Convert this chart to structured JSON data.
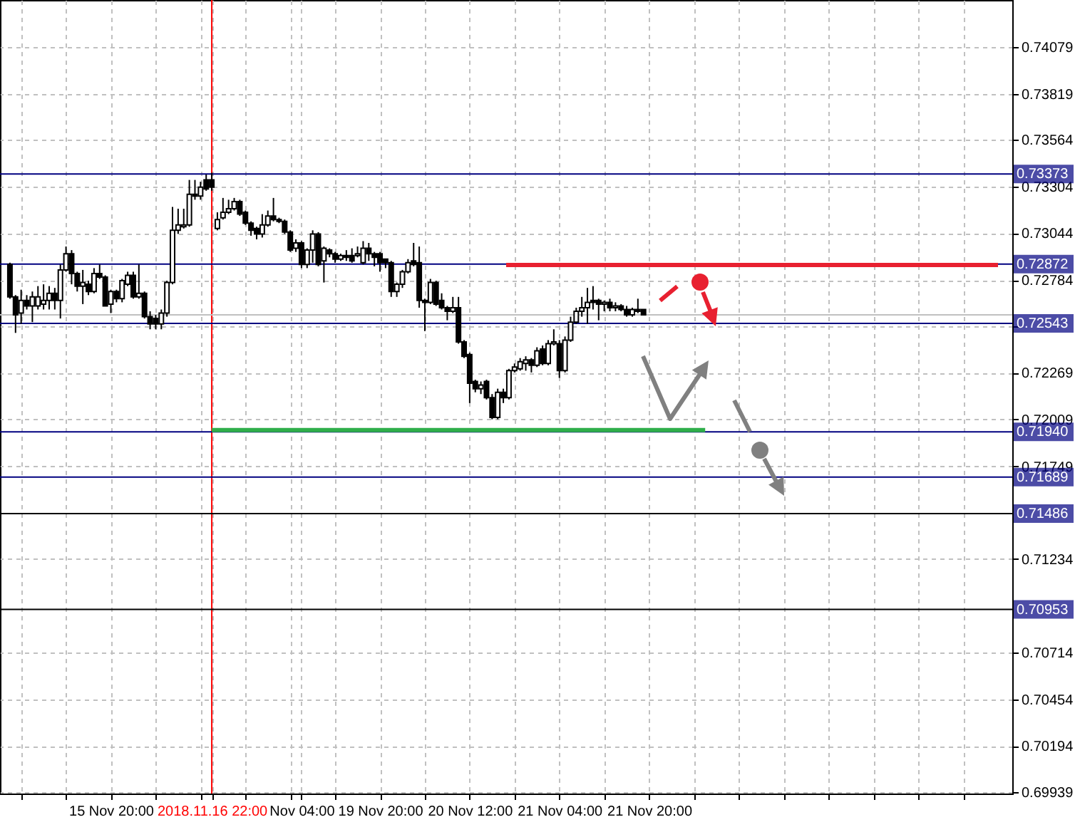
{
  "chart_data": {
    "type": "candlestick",
    "categories": [
      null,
      null,
      null,
      null,
      null,
      null,
      null,
      null,
      null,
      null,
      null,
      null,
      null,
      null,
      null,
      null,
      null,
      null,
      "15 Nov 20:00",
      null,
      null,
      null,
      null,
      null,
      null,
      null,
      null,
      null,
      null,
      null,
      null,
      null,
      null,
      null,
      null,
      null,
      "2018.11.16 22:00",
      null,
      null,
      null,
      null,
      null,
      null,
      null,
      null,
      null,
      null,
      null,
      null,
      null,
      null,
      null,
      "Nov 04:00",
      null,
      null,
      null,
      null,
      null,
      null,
      null,
      null,
      null,
      null,
      null,
      null,
      null,
      "19 Nov 20:00",
      null,
      null,
      null,
      null,
      null,
      null,
      null,
      null,
      null,
      null,
      null,
      null,
      null,
      null,
      null,
      "20 Nov 12:00",
      null,
      null,
      null,
      null,
      null,
      null,
      null,
      null,
      null,
      null,
      null,
      null,
      null,
      null,
      null,
      "21 Nov 04:00",
      null,
      null,
      null,
      null,
      null,
      null,
      null,
      null,
      null,
      null,
      null,
      null,
      null,
      null,
      null,
      "21 Nov 20:00",
      null,
      null,
      null,
      null,
      null,
      null,
      null,
      null,
      null,
      null,
      null,
      null,
      null,
      null,
      null,
      null,
      null,
      null,
      null,
      null,
      null,
      null,
      null,
      null,
      null,
      null,
      null,
      null,
      null,
      null,
      null,
      null,
      null,
      null,
      null,
      null,
      null,
      null,
      null,
      null,
      null,
      null,
      null,
      null,
      null,
      null,
      null,
      null,
      null,
      null,
      null,
      null,
      null,
      null,
      null,
      null,
      null,
      null,
      null,
      null,
      null,
      null,
      null
    ],
    "ohlc": [
      [
        0.7287,
        0.7288,
        0.7268,
        0.7269
      ],
      [
        0.7269,
        0.727,
        0.7249,
        0.7259
      ],
      [
        0.726,
        0.7273,
        0.7254,
        0.7267
      ],
      [
        0.7267,
        0.727,
        0.7262,
        0.7264
      ],
      [
        0.7264,
        0.7272,
        0.7255,
        0.7269
      ],
      [
        0.7264,
        0.7275,
        0.7262,
        0.7269
      ],
      [
        0.7265,
        0.7276,
        0.7262,
        0.7267
      ],
      [
        0.7267,
        0.7275,
        0.7262,
        0.7271
      ],
      [
        0.7271,
        0.7274,
        0.7262,
        0.7267
      ],
      [
        0.7267,
        0.7287,
        0.7257,
        0.7284
      ],
      [
        0.7284,
        0.7297,
        0.7283,
        0.7293
      ],
      [
        0.7293,
        0.7295,
        0.7276,
        0.7282
      ],
      [
        0.7282,
        0.7283,
        0.7272,
        0.7275
      ],
      [
        0.7275,
        0.7284,
        0.7265,
        0.7277
      ],
      [
        0.7276,
        0.7278,
        0.727,
        0.7272
      ],
      [
        0.7272,
        0.7285,
        0.7271,
        0.7282
      ],
      [
        0.7282,
        0.7287,
        0.7279,
        0.728
      ],
      [
        0.728,
        0.7281,
        0.7264,
        0.7264
      ],
      [
        0.7265,
        0.7273,
        0.726,
        0.7272
      ],
      [
        0.7272,
        0.7273,
        0.7266,
        0.7268
      ],
      [
        0.7268,
        0.7279,
        0.7266,
        0.7278
      ],
      [
        0.7276,
        0.7283,
        0.7275,
        0.7281
      ],
      [
        0.7281,
        0.7283,
        0.7268,
        0.7269
      ],
      [
        0.7269,
        0.7287,
        0.7268,
        0.7271
      ],
      [
        0.7271,
        0.7272,
        0.7257,
        0.7258
      ],
      [
        0.7258,
        0.7261,
        0.7251,
        0.7254
      ],
      [
        0.7257,
        0.7259,
        0.7251,
        0.7254
      ],
      [
        0.7254,
        0.7262,
        0.7251,
        0.726
      ],
      [
        0.726,
        0.7278,
        0.7258,
        0.7277
      ],
      [
        0.7277,
        0.7319,
        0.7276,
        0.7306
      ],
      [
        0.7306,
        0.7318,
        0.7304,
        0.7309
      ],
      [
        0.7308,
        0.7318,
        0.7307,
        0.7309
      ],
      [
        0.7309,
        0.7334,
        0.7308,
        0.7326
      ],
      [
        0.7326,
        0.7334,
        0.7323,
        0.7325
      ],
      [
        0.7325,
        0.7333,
        0.7323,
        0.733
      ],
      [
        0.7334,
        0.7337,
        0.7328,
        0.7329
      ],
      [
        0.7334,
        0.7338,
        0.7328,
        0.733
      ],
      [
        0.7307,
        0.7316,
        0.7306,
        0.7312
      ],
      [
        0.7313,
        0.7324,
        0.7312,
        0.7316
      ],
      [
        0.7316,
        0.7323,
        0.7315,
        0.7318
      ],
      [
        0.7318,
        0.7324,
        0.7317,
        0.7322
      ],
      [
        0.7322,
        0.7323,
        0.7314,
        0.7315
      ],
      [
        0.7316,
        0.7317,
        0.7309,
        0.731
      ],
      [
        0.731,
        0.7311,
        0.7303,
        0.7306
      ],
      [
        0.7307,
        0.7308,
        0.7301,
        0.7304
      ],
      [
        0.7304,
        0.7315,
        0.7302,
        0.7309
      ],
      [
        0.7309,
        0.7317,
        0.7308,
        0.7314
      ],
      [
        0.7314,
        0.7324,
        0.7311,
        0.7312
      ],
      [
        0.7312,
        0.7313,
        0.731,
        0.7311
      ],
      [
        0.7311,
        0.7312,
        0.7304,
        0.7305
      ],
      [
        0.7305,
        0.7306,
        0.7294,
        0.7295
      ],
      [
        0.7296,
        0.7301,
        0.7294,
        0.7299
      ],
      [
        0.7299,
        0.73,
        0.7285,
        0.7287
      ],
      [
        0.7287,
        0.7296,
        0.7285,
        0.7295
      ],
      [
        0.7295,
        0.7306,
        0.7288,
        0.7304
      ],
      [
        0.7304,
        0.7305,
        0.7286,
        0.7287
      ],
      [
        0.7289,
        0.7297,
        0.7277,
        0.7296
      ],
      [
        0.7295,
        0.7296,
        0.7291,
        0.7293
      ],
      [
        0.7293,
        0.7294,
        0.7288,
        0.729
      ],
      [
        0.729,
        0.7293,
        0.7289,
        0.7292
      ],
      [
        0.7292,
        0.7295,
        0.7289,
        0.7291
      ],
      [
        0.7292,
        0.7296,
        0.7288,
        0.7289
      ],
      [
        0.7292,
        0.7297,
        0.7291,
        0.7293
      ],
      [
        0.7288,
        0.73,
        0.7287,
        0.7296
      ],
      [
        0.7296,
        0.7299,
        0.7289,
        0.7293
      ],
      [
        0.7293,
        0.7294,
        0.7286,
        0.7291
      ],
      [
        0.7293,
        0.7294,
        0.7283,
        0.7288
      ],
      [
        0.729,
        0.729,
        0.7285,
        0.7288
      ],
      [
        0.7288,
        0.7289,
        0.7269,
        0.7272
      ],
      [
        0.7272,
        0.7277,
        0.7269,
        0.7276
      ],
      [
        0.7276,
        0.7284,
        0.7274,
        0.7283
      ],
      [
        0.7283,
        0.729,
        0.7282,
        0.7288
      ],
      [
        0.7289,
        0.7299,
        0.7286,
        0.7287
      ],
      [
        0.7288,
        0.7297,
        0.7263,
        0.7267
      ],
      [
        0.7267,
        0.7268,
        0.725,
        0.7266
      ],
      [
        0.7266,
        0.7279,
        0.7265,
        0.7277
      ],
      [
        0.7277,
        0.7278,
        0.7264,
        0.7265
      ],
      [
        0.7267,
        0.7271,
        0.7262,
        0.7263
      ],
      [
        0.7263,
        0.7264,
        0.7256,
        0.7261
      ],
      [
        0.7261,
        0.7269,
        0.726,
        0.7263
      ],
      [
        0.7263,
        0.7269,
        0.7243,
        0.7244
      ],
      [
        0.7244,
        0.7245,
        0.7235,
        0.7236
      ],
      [
        0.7237,
        0.7238,
        0.721,
        0.7221
      ],
      [
        0.7222,
        0.7223,
        0.7216,
        0.7218
      ],
      [
        0.7218,
        0.7222,
        0.7215,
        0.722
      ],
      [
        0.7222,
        0.7223,
        0.7212,
        0.7213
      ],
      [
        0.7213,
        0.7215,
        0.7201,
        0.7202
      ],
      [
        0.7202,
        0.7218,
        0.7201,
        0.7216
      ],
      [
        0.7216,
        0.7218,
        0.721,
        0.7213
      ],
      [
        0.7213,
        0.7229,
        0.7212,
        0.7228
      ],
      [
        0.7228,
        0.7232,
        0.7227,
        0.723
      ],
      [
        0.7229,
        0.7235,
        0.7228,
        0.7233
      ],
      [
        0.7232,
        0.7236,
        0.7228,
        0.7234
      ],
      [
        0.7234,
        0.7235,
        0.7227,
        0.7231
      ],
      [
        0.7231,
        0.7241,
        0.723,
        0.7239
      ],
      [
        0.724,
        0.7242,
        0.7231,
        0.7232
      ],
      [
        0.7232,
        0.7245,
        0.7231,
        0.7243
      ],
      [
        0.7243,
        0.7251,
        0.7242,
        0.7244
      ],
      [
        0.7243,
        0.7245,
        0.7224,
        0.7228
      ],
      [
        0.7228,
        0.7247,
        0.7227,
        0.7245
      ],
      [
        0.7245,
        0.7258,
        0.7244,
        0.7255
      ],
      [
        0.7255,
        0.7263,
        0.7254,
        0.7261
      ],
      [
        0.7261,
        0.7269,
        0.7258,
        0.7263
      ],
      [
        0.7263,
        0.7274,
        0.7254,
        0.7266
      ],
      [
        0.7267,
        0.7275,
        0.7262,
        0.7266
      ],
      [
        0.7267,
        0.7268,
        0.7256,
        0.7265
      ],
      [
        0.7265,
        0.7267,
        0.7261,
        0.7266
      ],
      [
        0.7266,
        0.7268,
        0.7261,
        0.7263
      ],
      [
        0.7263,
        0.7266,
        0.7261,
        0.7264
      ],
      [
        0.7264,
        0.7265,
        0.7261,
        0.7262
      ],
      [
        0.7262,
        0.7264,
        0.7258,
        0.7259
      ],
      [
        0.7259,
        0.7263,
        0.7258,
        0.7262
      ],
      [
        0.7262,
        0.7268,
        0.726,
        0.7261
      ],
      [
        0.7262,
        0.7262,
        0.7259,
        0.7259
      ],
      null,
      null,
      null,
      null,
      null,
      null,
      null,
      null,
      null,
      null,
      null,
      null,
      null,
      null,
      null,
      null,
      null,
      null,
      null,
      null,
      null,
      null,
      null,
      null,
      null,
      null,
      null,
      null,
      null,
      null,
      null,
      null,
      null,
      null,
      null,
      null,
      null,
      null,
      null,
      null,
      null,
      null,
      null,
      null,
      null,
      null,
      null,
      null,
      null,
      null,
      null,
      null,
      null,
      null,
      null,
      null,
      null,
      null,
      null,
      null,
      null,
      null,
      null,
      null
    ],
    "ylim": [
      0.6993,
      0.7434
    ],
    "yticks": [
      0.74079,
      0.73819,
      0.73564,
      0.73304,
      0.73044,
      0.72784,
      {
        "value": 0.72524,
        "label": null
      },
      0.72269,
      0.72009,
      0.71749,
      0.71234,
      0.70714,
      0.70454,
      0.70194,
      0.69939
    ],
    "grid": true,
    "series": [
      {
        "type": "line",
        "color": "#2fae4a",
        "values": [
          null,
          null,
          null,
          null,
          null,
          null,
          null,
          null,
          null,
          null,
          null,
          null,
          null,
          null,
          null,
          null,
          null,
          null,
          null,
          null,
          null,
          null,
          null,
          null,
          null,
          null,
          null,
          null,
          null,
          null,
          null,
          null,
          null,
          null,
          null,
          null,
          0.7195,
          0.7195,
          0.7195,
          0.7195,
          0.7195,
          0.7195,
          0.7195,
          0.7195,
          0.7195,
          0.7195,
          0.7195,
          0.7195,
          0.7195,
          0.7195,
          0.7195,
          0.7195,
          0.7195,
          0.7195,
          0.7195,
          0.7195,
          0.7195,
          0.7195,
          0.7195,
          0.7195,
          0.7195,
          0.7195,
          0.7195,
          0.7195,
          0.7195,
          0.7195,
          0.7195,
          0.7195,
          0.7195,
          0.7195,
          0.7195,
          0.7195,
          0.7195,
          0.7195,
          0.7195,
          0.7195,
          0.7195,
          0.7195,
          0.7195,
          0.7195,
          0.7195,
          0.7195,
          0.7195,
          0.7195,
          0.7195,
          0.7195,
          0.7195,
          0.7195,
          0.7195,
          0.7195,
          0.7195,
          0.7195,
          0.7195,
          0.7195,
          0.7195,
          0.7195,
          0.7195,
          0.7195,
          0.7195,
          0.7195,
          0.7195,
          0.7195,
          0.7195,
          0.7195,
          0.7195,
          0.7195,
          0.7195,
          0.7195,
          0.7195,
          0.7195,
          0.7195,
          0.7195,
          0.7195,
          0.7195,
          0.7195,
          0.7195,
          0.7195,
          0.7195,
          0.7195,
          0.7195,
          0.7195,
          0.7195,
          0.7195,
          0.7195,
          0.7195,
          null,
          null,
          null,
          null,
          null,
          null,
          null,
          null,
          null,
          null,
          null,
          null,
          null,
          null,
          null,
          null,
          null,
          null,
          null,
          null,
          null,
          null,
          null,
          null,
          null,
          null,
          null,
          null,
          null,
          null,
          null,
          null,
          null,
          null,
          null,
          null,
          null,
          null,
          null,
          null,
          null,
          null,
          null,
          null,
          null,
          null,
          null,
          null,
          null,
          null,
          null,
          null,
          null
        ]
      }
    ],
    "ref_lines": [
      {
        "axis": "y",
        "value": 0.73373,
        "label": "0.73373",
        "color": "#000080"
      },
      {
        "axis": "y",
        "value": 0.72872,
        "label": "0.72872",
        "color": "#000080"
      },
      {
        "axis": "y",
        "value": 0.7259,
        "color": "#c0c0c0"
      },
      {
        "axis": "y",
        "value": 0.72543,
        "label": "0.72543",
        "color": "#000080"
      },
      {
        "axis": "y",
        "value": 0.7194,
        "label": "0.71940",
        "color": "#000080"
      },
      {
        "axis": "y",
        "value": 0.71689,
        "label": "0.71689",
        "color": "#000080"
      },
      {
        "axis": "y",
        "value": 0.71486,
        "label": "0.71486",
        "color": "#000000"
      },
      {
        "axis": "y",
        "value": 0.70953,
        "label": "0.70953",
        "color": "#000000"
      },
      {
        "axis": "x",
        "value": "2018.11.16 22:00",
        "color": "#ff0000"
      }
    ]
  }
}
